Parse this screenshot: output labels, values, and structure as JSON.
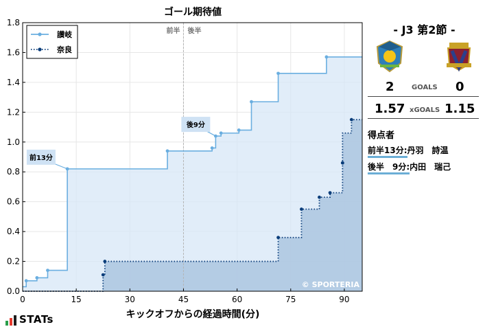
{
  "chart_data": {
    "type": "line",
    "title": "ゴール期待値",
    "xlabel": "キックオフからの経過時間(分)",
    "ylabel": "",
    "xlim": [
      0,
      95
    ],
    "ylim": [
      0,
      1.8
    ],
    "xticks": [
      0,
      15,
      30,
      45,
      60,
      75,
      90
    ],
    "yticks": [
      0.0,
      0.2,
      0.4,
      0.6,
      0.8,
      1.0,
      1.2,
      1.4,
      1.6,
      1.8
    ],
    "grid": true,
    "halftime_marker": {
      "x": 45,
      "labels": [
        "前半",
        "後半"
      ]
    },
    "legend": {
      "position": "top-left"
    },
    "watermark": "© SPORTERIA",
    "series": [
      {
        "name": "讃岐",
        "color": "#6aaee0",
        "style": "solid",
        "x": [
          0,
          1,
          4,
          7,
          12,
          12.5,
          40.5,
          53,
          54,
          55.5,
          60.5,
          64,
          71.5,
          85,
          95
        ],
        "y": [
          0.03,
          0.07,
          0.09,
          0.14,
          0.14,
          0.82,
          0.94,
          0.96,
          1.04,
          1.06,
          1.08,
          1.27,
          1.46,
          1.57,
          1.57
        ],
        "markers": [
          1,
          4,
          7,
          12.5,
          40.5,
          53,
          54,
          55.5,
          60.5,
          64,
          71.5,
          85
        ]
      },
      {
        "name": "奈良",
        "color": "#0a3d7a",
        "style": "dotted",
        "x": [
          0,
          22.5,
          23,
          71.5,
          78,
          83,
          86,
          89.5,
          89.5,
          91,
          92,
          95
        ],
        "y": [
          0.0,
          0.11,
          0.2,
          0.36,
          0.55,
          0.63,
          0.66,
          0.86,
          1.06,
          1.06,
          1.15,
          1.15
        ],
        "markers": [
          22.5,
          23,
          71.5,
          78,
          83,
          86,
          89.5,
          89.5,
          92
        ]
      }
    ],
    "annotations": [
      {
        "text": "前13分",
        "x": 12.5,
        "y": 0.82
      },
      {
        "text": "後9分",
        "x": 54,
        "y": 1.04
      }
    ]
  },
  "match": {
    "title": "-  J3 第2節  -",
    "home_crest_icon": "sanuki-crest-icon",
    "away_crest_icon": "nara-crest-icon",
    "home_goals": "2",
    "away_goals": "0",
    "goals_label": "GOALS",
    "home_xg": "1.57",
    "away_xg": "1.15",
    "xg_label": "xGOALS"
  },
  "scorers": {
    "heading": "得点者",
    "items": [
      {
        "time": "前半13分:",
        "name": "丹羽　詩温"
      },
      {
        "time": "後半　9分:",
        "name": "内田　瑞己"
      }
    ]
  },
  "brand": {
    "name": "STATs",
    "bar_colors": [
      "#2a9d4a",
      "#e63b2e",
      "#1c1c1c"
    ]
  }
}
